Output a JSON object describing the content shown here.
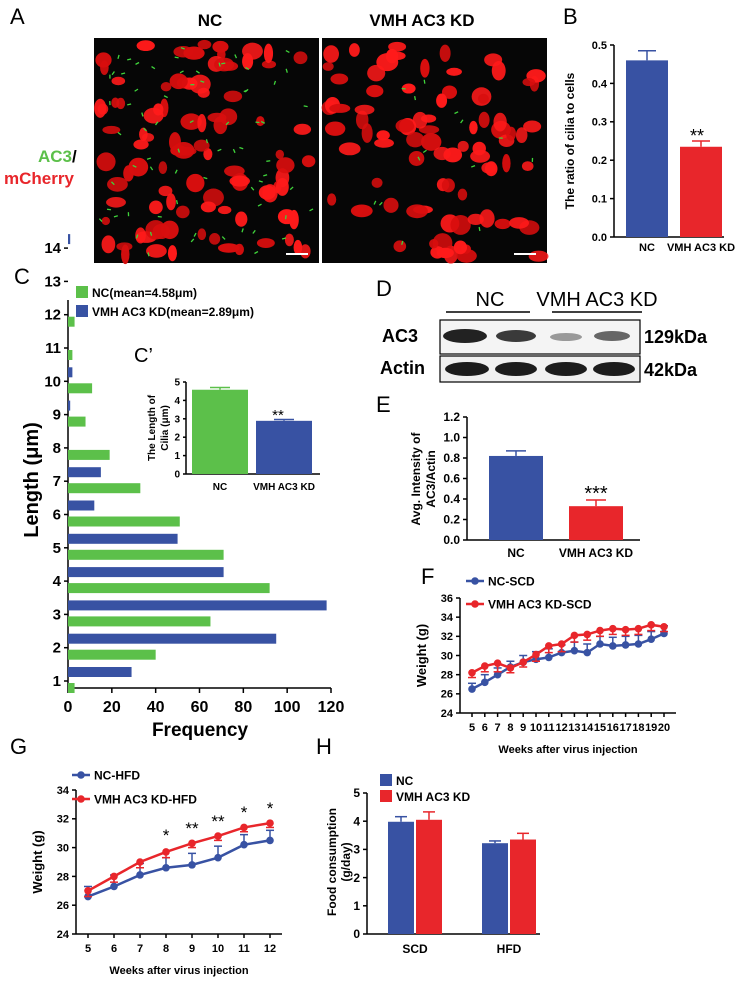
{
  "colors": {
    "blue": "#3852a3",
    "red": "#e8262b",
    "green": "#5cc04a",
    "axis": "#000000"
  },
  "panels": {
    "A": {
      "letter": "A",
      "label_nc": "NC",
      "label_kd": "VMH AC3 KD",
      "stain_green": "AC3",
      "stain_slash": "/",
      "stain_red": "mCherry"
    },
    "B": {
      "letter": "B",
      "sig": "**"
    },
    "C": {
      "letter": "C"
    },
    "Cp": {
      "letter": "C’",
      "sig": "**"
    },
    "D": {
      "letter": "D",
      "nc": "NC",
      "kd": "VMH AC3 KD",
      "row1": "AC3",
      "row2": "Actin",
      "kda1": "129kDa",
      "kda2": "42kDa"
    },
    "E": {
      "letter": "E",
      "sig": "***"
    },
    "F": {
      "letter": "F"
    },
    "G": {
      "letter": "G",
      "sig": [
        "*",
        "**",
        "**",
        "*",
        "*"
      ]
    },
    "H": {
      "letter": "H"
    }
  },
  "chart_data": [
    {
      "panel": "B",
      "type": "bar",
      "categories": [
        "NC",
        "VMH AC3 KD"
      ],
      "values": [
        0.46,
        0.235
      ],
      "errors": [
        0.025,
        0.015
      ],
      "ylabel": "The ratio of cilia to cells",
      "ylim": [
        0,
        0.5
      ],
      "yticks": [
        "0.0",
        "0.1",
        "0.2",
        "0.3",
        "0.4",
        "0.5"
      ]
    },
    {
      "panel": "C",
      "type": "bar",
      "orientation": "horizontal",
      "categories": [
        "1",
        "2",
        "3",
        "4",
        "5",
        "6",
        "7",
        "8",
        "9",
        "10",
        "11",
        "12",
        "13",
        "14"
      ],
      "series": [
        {
          "name": "NC(mean=4.58μm)",
          "values": [
            3,
            40,
            65,
            92,
            71,
            51,
            33,
            19,
            8,
            11,
            2,
            3,
            0,
            0
          ]
        },
        {
          "name": "VMH AC3 KD(mean=2.89μm)",
          "values": [
            29,
            95,
            118,
            71,
            50,
            12,
            15,
            0,
            1,
            2,
            0,
            0,
            0,
            1
          ]
        }
      ],
      "xlabel": "Frequency",
      "ylabel": "Length (μm)",
      "xlim": [
        0,
        120
      ],
      "xticks": [
        "0",
        "20",
        "40",
        "60",
        "80",
        "100",
        "120"
      ]
    },
    {
      "panel": "C’",
      "type": "bar",
      "categories": [
        "NC",
        "VMH AC3 KD"
      ],
      "values": [
        4.58,
        2.89
      ],
      "errors": [
        0.12,
        0.07
      ],
      "ylabel": "The Length of Cilia (μm)",
      "ylim": [
        0,
        5
      ],
      "yticks": [
        "0",
        "1",
        "2",
        "3",
        "4",
        "5"
      ]
    },
    {
      "panel": "E",
      "type": "bar",
      "categories": [
        "NC",
        "VMH AC3 KD"
      ],
      "values": [
        0.82,
        0.33
      ],
      "errors": [
        0.05,
        0.06
      ],
      "ylabel": "Avg. Intensity of AC3/Actin",
      "ylim": [
        0,
        1.2
      ],
      "yticks": [
        "0.0",
        "0.2",
        "0.4",
        "0.6",
        "0.8",
        "1.0",
        "1.2"
      ]
    },
    {
      "panel": "F",
      "type": "line",
      "x": [
        5,
        6,
        7,
        8,
        9,
        10,
        11,
        12,
        13,
        14,
        15,
        16,
        17,
        18,
        19,
        20
      ],
      "series": [
        {
          "name": "NC-SCD",
          "values": [
            26.5,
            27.2,
            28.0,
            28.8,
            29.3,
            29.6,
            29.8,
            30.3,
            30.5,
            30.3,
            31.2,
            31.0,
            31.1,
            31.2,
            31.7,
            32.3
          ],
          "errors": [
            0.6,
            0.8,
            0.7,
            0.6,
            0.7,
            0.8,
            0.9,
            0.8,
            0.9,
            0.9,
            0.8,
            0.9,
            0.9,
            0.9,
            0.8,
            0.8
          ]
        },
        {
          "name": "VMH AC3 KD-SCD",
          "values": [
            28.2,
            28.9,
            29.2,
            28.7,
            29.3,
            30.1,
            31.0,
            31.2,
            32.1,
            32.2,
            32.6,
            32.8,
            32.7,
            32.8,
            33.2,
            33.0
          ],
          "errors": [
            0.5,
            0.6,
            0.9,
            0.5,
            0.5,
            0.7,
            0.7,
            0.8,
            0.7,
            0.6,
            0.6,
            0.6,
            0.6,
            0.6,
            0.6,
            0.5
          ]
        }
      ],
      "xlabel": "Weeks after virus injection",
      "ylabel": "Weight (g)",
      "ylim": [
        24,
        36
      ],
      "yticks": [
        "24",
        "26",
        "28",
        "30",
        "32",
        "34",
        "36"
      ],
      "xticks": [
        "5",
        "6",
        "7",
        "8",
        "9",
        "10",
        "11",
        "12",
        "13",
        "14",
        "15",
        "16",
        "17",
        "18",
        "19",
        "20"
      ]
    },
    {
      "panel": "G",
      "type": "line",
      "x": [
        5,
        6,
        7,
        8,
        9,
        10,
        11,
        12
      ],
      "series": [
        {
          "name": "NC-HFD",
          "values": [
            26.6,
            27.3,
            28.1,
            28.6,
            28.8,
            29.3,
            30.2,
            30.5
          ],
          "errors": [
            0.7,
            0.8,
            0.8,
            0.7,
            0.8,
            0.8,
            0.7,
            0.7
          ]
        },
        {
          "name": "VMH AC3 KD-HFD",
          "values": [
            27.0,
            28.0,
            29.0,
            29.7,
            30.3,
            30.8,
            31.4,
            31.7
          ],
          "errors": [
            0.4,
            0.4,
            0.4,
            0.4,
            0.3,
            0.3,
            0.3,
            0.3
          ]
        }
      ],
      "xlabel": "Weeks after virus injection",
      "ylabel": "Weight (g)",
      "ylim": [
        24,
        34
      ],
      "yticks": [
        "24",
        "26",
        "28",
        "30",
        "32",
        "34"
      ],
      "xticks": [
        "5",
        "6",
        "7",
        "8",
        "9",
        "10",
        "11",
        "12"
      ]
    },
    {
      "panel": "H",
      "type": "bar",
      "categories": [
        "SCD",
        "HFD"
      ],
      "series": [
        {
          "name": "NC",
          "values": [
            3.98,
            3.22
          ],
          "errors": [
            0.18,
            0.08
          ]
        },
        {
          "name": "VMH AC3 KD",
          "values": [
            4.05,
            3.35
          ],
          "errors": [
            0.28,
            0.22
          ]
        }
      ],
      "ylabel": "Food consumption (g/day)",
      "ylim": [
        0,
        5
      ],
      "yticks": [
        "0",
        "1",
        "2",
        "3",
        "4",
        "5"
      ]
    }
  ]
}
